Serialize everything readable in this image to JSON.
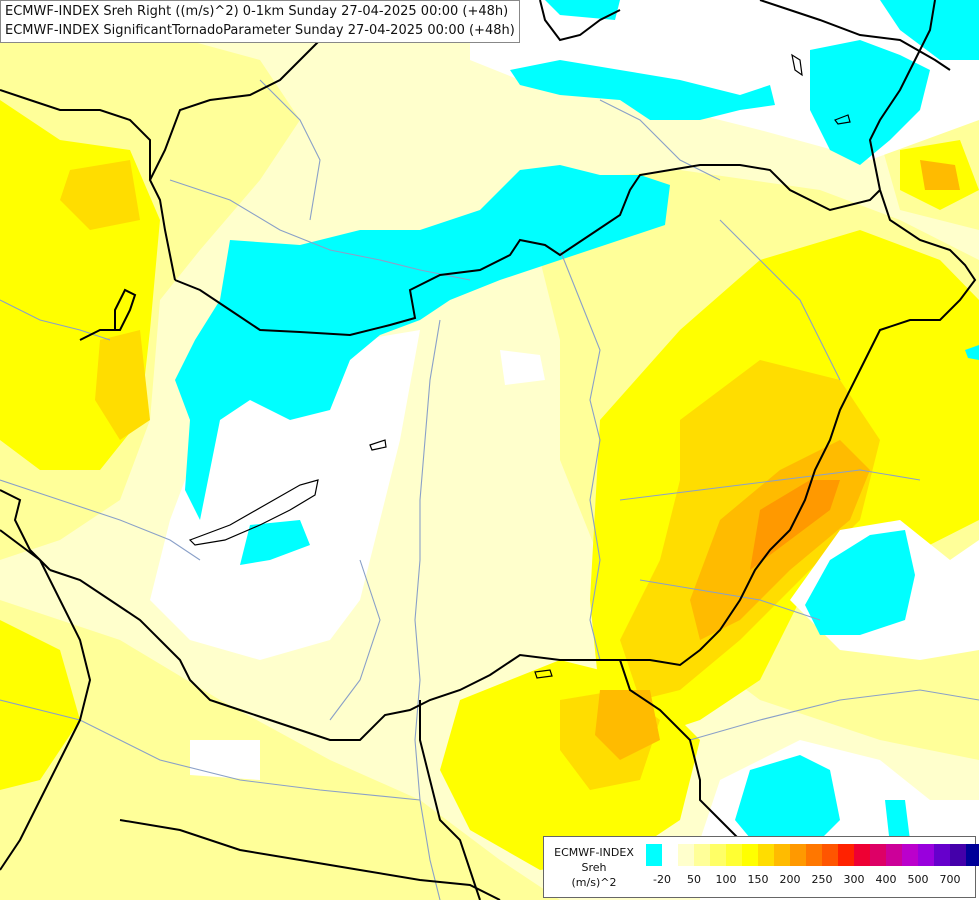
{
  "title_lines": [
    "ECMWF-INDEX Sreh Right ((m/s)^2) 0-1km Sunday 27-04-2025 00:00 (+48h)",
    "ECMWF-INDEX SignificantTornadoParameter Sunday 27-04-2025 00:00 (+48h)"
  ],
  "legend": {
    "model": "ECMWF-INDEX",
    "param": "Sreh",
    "unit": "(m/s)^2",
    "colors": [
      "#00ffff",
      "#ffffff",
      "#ffffcc",
      "#ffff99",
      "#ffff66",
      "#ffff33",
      "#ffff00",
      "#ffdd00",
      "#ffbb00",
      "#ff9900",
      "#ff7700",
      "#ff5500",
      "#ff2200",
      "#ee0033",
      "#dd0066",
      "#cc0099",
      "#bb00cc",
      "#9900dd",
      "#6600cc",
      "#4400aa",
      "#000099"
    ],
    "labels": [
      "-20",
      "50",
      "100",
      "150",
      "200",
      "250",
      "300",
      "400",
      "500",
      "700"
    ]
  },
  "colors": {
    "cyan": "#00ffff",
    "white": "#ffffff",
    "pale_yellow": "#ffffcc",
    "light_yellow": "#ffff99",
    "yellow": "#ffff00",
    "gold": "#ffdd00",
    "orange": "#ffbb00",
    "dark_orange": "#ff9900",
    "border": "#000000",
    "river": "#8aa0c8"
  }
}
